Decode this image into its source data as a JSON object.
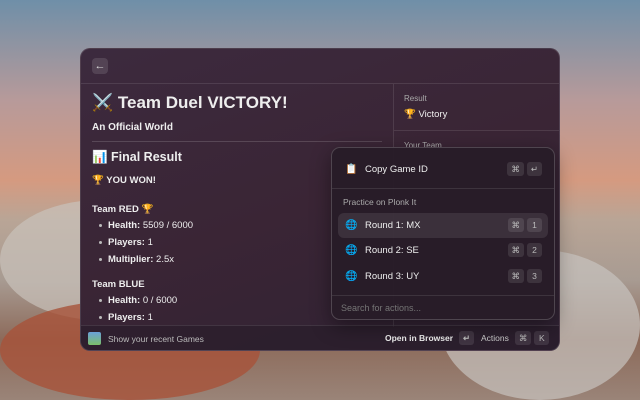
{
  "header": {
    "back_icon": "arrow-left-icon"
  },
  "main": {
    "title": "⚔️ Team Duel VICTORY!",
    "subtitle": "An Official World",
    "section": "📊 Final Result",
    "result": "🏆 YOU WON!",
    "teams": [
      {
        "name": "Team RED 🏆",
        "stats": [
          {
            "label": "Health:",
            "value": " 5509 / 6000"
          },
          {
            "label": "Players:",
            "value": " 1"
          },
          {
            "label": "Multiplier:",
            "value": " 2.5x"
          }
        ]
      },
      {
        "name": "Team BLUE",
        "stats": [
          {
            "label": "Health:",
            "value": " 0 / 6000"
          },
          {
            "label": "Players:",
            "value": " 1"
          }
        ]
      }
    ]
  },
  "metadata": {
    "result_label": "Result",
    "result_value": "🏆 Victory",
    "team_label": "Your Team"
  },
  "footer": {
    "recent": "Show your recent Games",
    "open": "Open in Browser",
    "open_key": "↵",
    "actions": "Actions",
    "actions_keys": [
      "⌘",
      "K"
    ]
  },
  "popup": {
    "copy": {
      "label": "Copy Game ID",
      "icon": "clipboard-icon",
      "keys": [
        "⌘",
        "↵"
      ]
    },
    "section": "Practice on Plonk It",
    "rounds": [
      {
        "label": "Round 1: MX",
        "keys": [
          "⌘",
          "1"
        ]
      },
      {
        "label": "Round 2: SE",
        "keys": [
          "⌘",
          "2"
        ]
      },
      {
        "label": "Round 3: UY",
        "keys": [
          "⌘",
          "3"
        ]
      }
    ],
    "search_placeholder": "Search for actions..."
  }
}
